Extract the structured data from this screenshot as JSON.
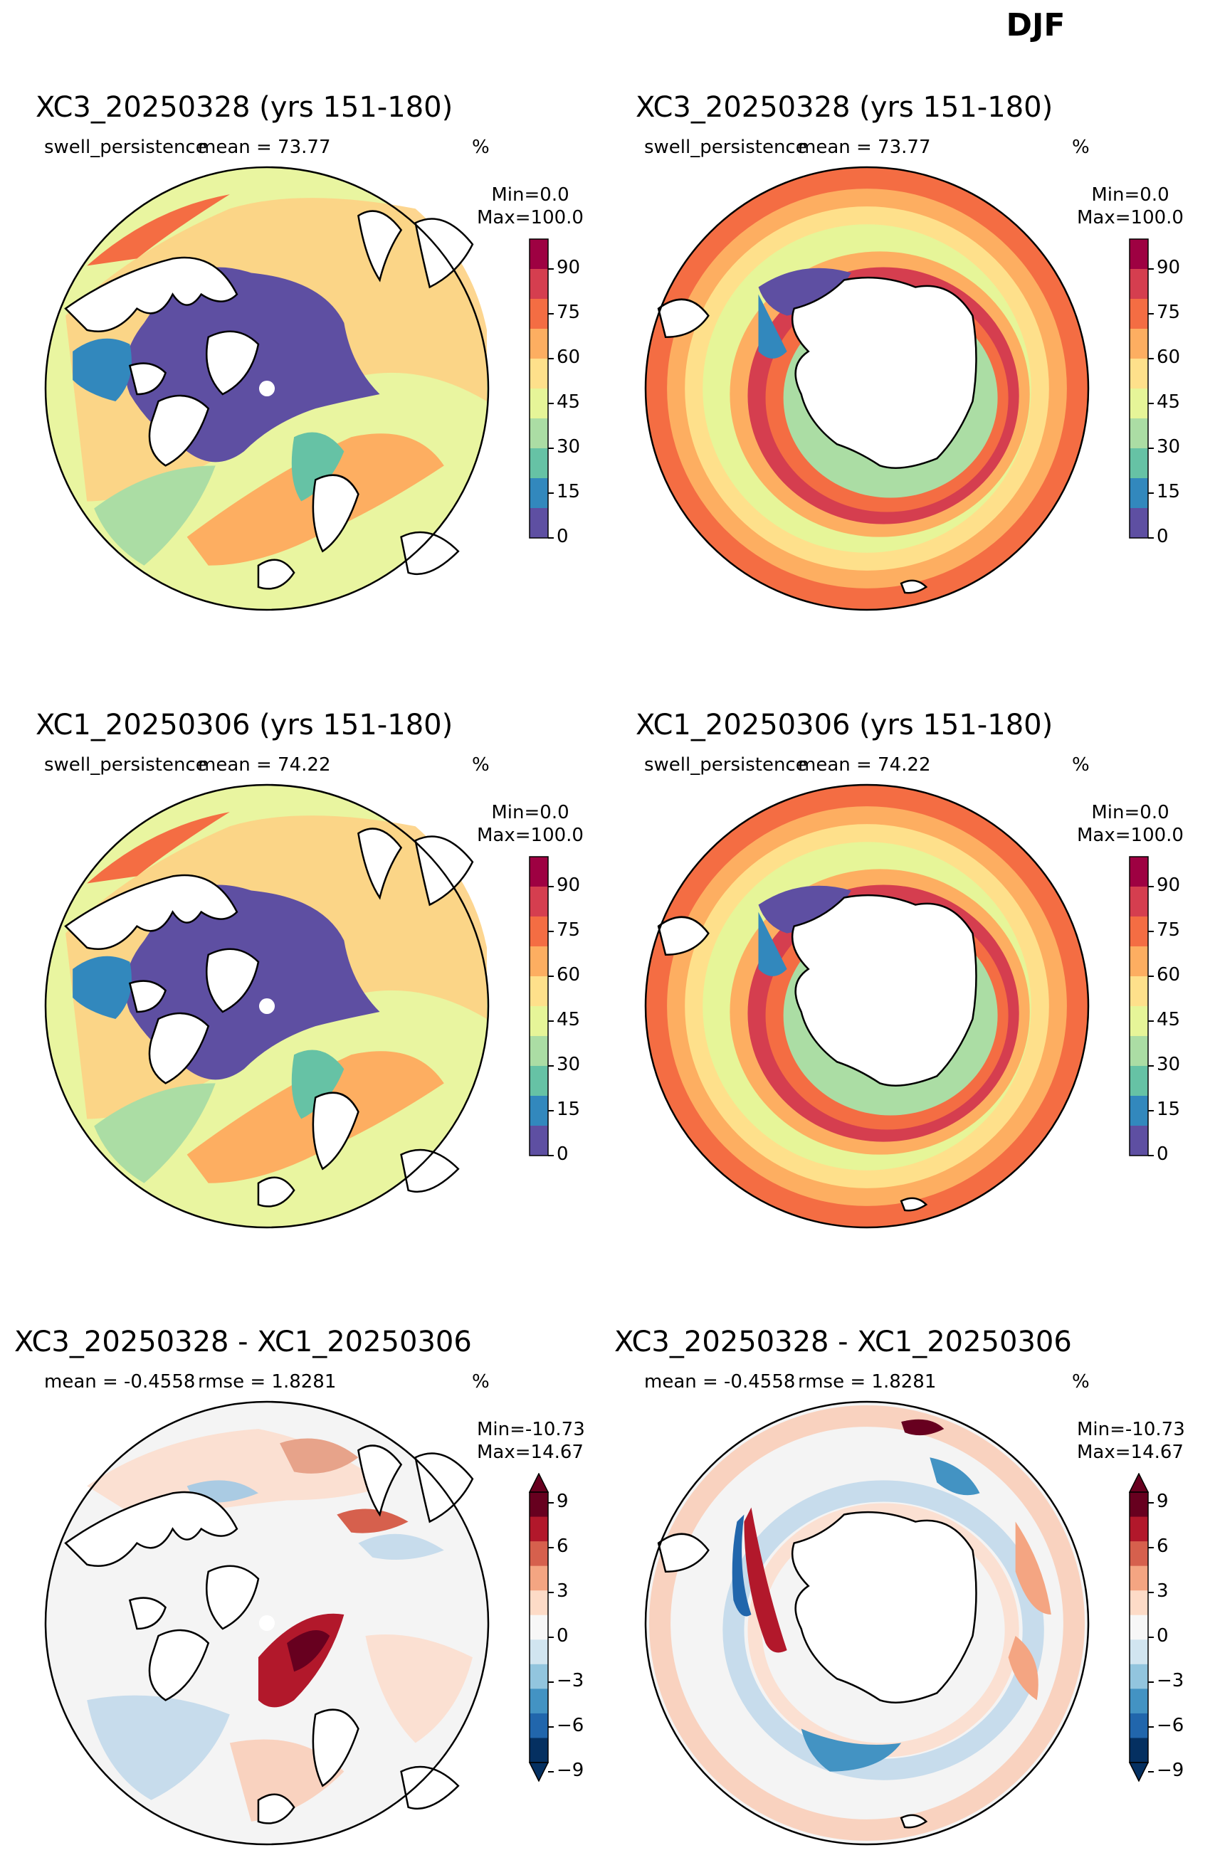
{
  "suptitle": "DJF",
  "rows": [
    {
      "title": "XC3_20250328 (yrs 151-180)",
      "left_label": "swell_persistence",
      "center_label": "mean = 73.77",
      "units": "%",
      "cb_min": "Min=0.0",
      "cb_max": "Max=100.0",
      "cb_type": "seq",
      "ticks": [
        "90",
        "75",
        "60",
        "45",
        "30",
        "15",
        "0"
      ]
    },
    {
      "title": "XC1_20250306 (yrs 151-180)",
      "left_label": "swell_persistence",
      "center_label": "mean = 74.22",
      "units": "%",
      "cb_min": "Min=0.0",
      "cb_max": "Max=100.0",
      "cb_type": "seq",
      "ticks": [
        "90",
        "75",
        "60",
        "45",
        "30",
        "15",
        "0"
      ]
    },
    {
      "title": "XC3_20250328 - XC1_20250306",
      "left_label": "mean = -0.4558",
      "center_label": "rmse = 1.8281",
      "units": "%",
      "cb_min": "Min=-10.73",
      "cb_max": "Max=14.67",
      "cb_type": "div",
      "ticks": [
        "9",
        "6",
        "3",
        "0",
        "−3",
        "−6",
        "−9"
      ]
    }
  ],
  "colors": {
    "sea_ice": "#5e4fa2",
    "land": "#ffffff",
    "coast": "#000000",
    "seq_colormap": "Spectral_r",
    "div_colormap": "RdBu_r"
  }
}
